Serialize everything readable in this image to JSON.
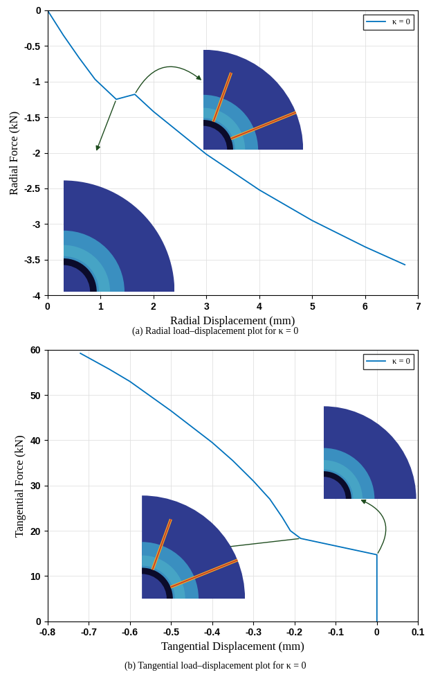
{
  "chart_data": [
    {
      "type": "line",
      "caption": "(a) Radial load–displacement plot for κ = 0",
      "x_label": "Radial Displacement (mm)",
      "y_label": "Radial Force (kN)",
      "series": [
        {
          "name": "κ = 0",
          "color": "#0072bd",
          "line_style": "solid",
          "x": [
            0,
            0.3,
            0.6,
            0.9,
            1.3,
            1.65,
            2.0,
            3.0,
            4.0,
            5.0,
            6.0,
            6.75
          ],
          "values": [
            0,
            -0.35,
            -0.67,
            -0.97,
            -1.25,
            -1.18,
            -1.42,
            -2.02,
            -2.52,
            -2.95,
            -3.32,
            -3.57
          ]
        }
      ],
      "xlim": [
        0,
        7
      ],
      "xticks": [
        0,
        1,
        2,
        3,
        4,
        5,
        6,
        7
      ],
      "ylim": [
        -4,
        0
      ],
      "yticks": [
        -4,
        -3.5,
        -3,
        -2.5,
        -2,
        -1.5,
        -1,
        -0.5,
        0
      ],
      "grid": true,
      "legend": "upper right"
    },
    {
      "type": "line",
      "caption": "(b) Tangential load–displacement plot for κ = 0",
      "x_label": "Tangential Displacement (mm)",
      "y_label": "Tangential Force (kN)",
      "series": [
        {
          "name": "κ = 0",
          "color": "#0072bd",
          "line_style": "solid",
          "x": [
            0,
            0,
            -0.185,
            -0.21,
            -0.23,
            -0.26,
            -0.3,
            -0.35,
            -0.4,
            -0.5,
            -0.6,
            -0.65,
            -0.72
          ],
          "values": [
            0,
            14.7,
            18.3,
            20,
            23,
            27,
            31,
            35.5,
            39.5,
            46.5,
            53,
            55.7,
            59.2
          ]
        }
      ],
      "xlim": [
        -0.8,
        0.1
      ],
      "xticks": [
        -0.8,
        -0.7,
        -0.6,
        -0.5,
        -0.4,
        -0.3,
        -0.2,
        -0.1,
        0,
        0.1
      ],
      "ylim": [
        0,
        60
      ],
      "yticks": [
        0,
        10,
        20,
        30,
        40,
        50,
        60
      ],
      "grid": true,
      "legend": "upper right"
    }
  ]
}
